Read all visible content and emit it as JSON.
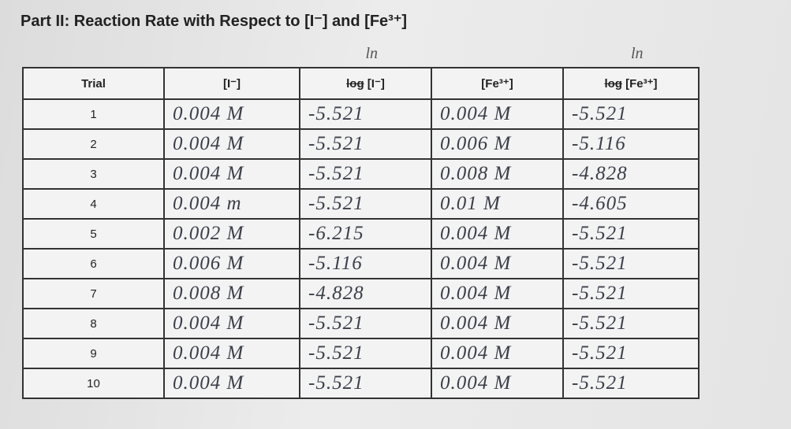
{
  "header": {
    "title": "Part II: Reaction Rate with Respect to [I⁻] and [Fe³⁺]"
  },
  "table": {
    "columns": [
      {
        "text": "Trial"
      },
      {
        "text": "[I⁻]"
      },
      {
        "struck": "log",
        "text": "[I⁻]",
        "note": "ln"
      },
      {
        "text": "[Fe³⁺]"
      },
      {
        "struck": "log",
        "text": "[Fe³⁺]",
        "note": "ln"
      }
    ],
    "rows": [
      [
        1,
        "0.004 M",
        "-5.521",
        "0.004 M",
        "-5.521"
      ],
      [
        2,
        "0.004 M",
        "-5.521",
        "0.006 M",
        "-5.116"
      ],
      [
        3,
        "0.004 M",
        "-5.521",
        "0.008 M",
        "-4.828"
      ],
      [
        4,
        "0.004 m",
        "-5.521",
        "0.01 M",
        "-4.605"
      ],
      [
        5,
        "0.002 M",
        "-6.215",
        "0.004 M",
        "-5.521"
      ],
      [
        6,
        "0.006 M",
        "-5.116",
        "0.004 M",
        "-5.521"
      ],
      [
        7,
        "0.008 M",
        "-4.828",
        "0.004 M",
        "-5.521"
      ],
      [
        8,
        "0.004 M",
        "-5.521",
        "0.004 M",
        "-5.521"
      ],
      [
        9,
        "0.004 M",
        "-5.521",
        "0.004 M",
        "-5.521"
      ],
      [
        10,
        "0.004 M",
        "-5.521",
        "0.004 M",
        "-5.521"
      ]
    ]
  }
}
